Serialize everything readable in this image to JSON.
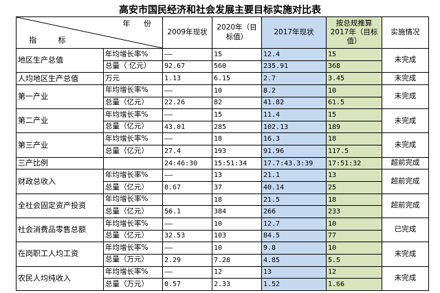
{
  "title": "高安市国民经济和社会发展主要目标实施对比表",
  "header": {
    "year_label": "年 份",
    "indicator_label": "指 标",
    "col_2009": "2009年现状",
    "col_2020": "2020年（目标值）",
    "col_2017_actual": "2017年现状",
    "col_2017_plan": "按总规推算2017年（目标值）",
    "col_status": "实施情况"
  },
  "rows": [
    {
      "indicator": "地区生产总值",
      "status": "未完成",
      "sub": [
        {
          "unit": "年均增长率%",
          "v2009": "——",
          "v2020": "15",
          "v2017": "12.4",
          "plan": "15"
        },
        {
          "unit": "总量（ 亿元）",
          "v2009": "92.67",
          "v2020": "560",
          "v2017": "235.91",
          "plan": "368"
        }
      ]
    },
    {
      "indicator": "人均地区生产总值",
      "status": "未完成",
      "sub": [
        {
          "unit": "万元",
          "v2009": "1.13",
          "v2020": "6.15",
          "v2017": "2.7",
          "plan": "3.45"
        }
      ]
    },
    {
      "indicator": "第一产业",
      "status": "未完成",
      "sub": [
        {
          "unit": "年均增长率%",
          "v2009": "——",
          "v2020": "10",
          "v2017": "8.2",
          "plan": "10"
        },
        {
          "unit": "总量（亿元）",
          "v2009": "22.26",
          "v2020": "82",
          "v2017": "41.82",
          "plan": "61.5"
        }
      ]
    },
    {
      "indicator": "第二产业",
      "status": "未完成",
      "sub": [
        {
          "unit": "年均增长率%",
          "v2009": "——",
          "v2020": "15",
          "v2017": "11.4",
          "plan": "15"
        },
        {
          "unit": "总量（亿元）",
          "v2009": "43.01",
          "v2020": "285",
          "v2017": "102.13",
          "plan": "189"
        }
      ]
    },
    {
      "indicator": "第三产业",
      "status": "未完成",
      "sub": [
        {
          "unit": "年均增长率%",
          "v2009": "——",
          "v2020": "18",
          "v2017": "16.3",
          "plan": "18"
        },
        {
          "unit": "总量（亿元）",
          "v2009": "27.4",
          "v2020": "193",
          "v2017": "91.96",
          "plan": "117.5"
        }
      ]
    },
    {
      "indicator": "三产比例",
      "status": "超前完成",
      "sub": [
        {
          "unit": "",
          "v2009": "24:46:30",
          "v2020": "15:51:34",
          "v2017": "17.7:43.3:39",
          "plan": "17:51:32"
        }
      ]
    },
    {
      "indicator": "财政总收入",
      "status": "超前完成",
      "sub": [
        {
          "unit": "年均增长率%",
          "v2009": "——",
          "v2020": "13",
          "v2017": "21.1",
          "plan": "13"
        },
        {
          "unit": "总量（亿元）",
          "v2009": "8.67",
          "v2020": "37",
          "v2017": "40.14",
          "plan": "25"
        }
      ]
    },
    {
      "indicator": "全社会固定资产投资",
      "status": "超前完成",
      "sub": [
        {
          "unit": "年均增长率%",
          "v2009": "",
          "v2020": "18",
          "v2017": "21.5",
          "plan": "18"
        },
        {
          "unit": "总量（亿元）",
          "v2009": "56.1",
          "v2020": "384",
          "v2017": "266",
          "plan": "233"
        }
      ]
    },
    {
      "indicator": "社会消费品零售总额",
      "status": "已完成",
      "sub": [
        {
          "unit": "年均增长率%",
          "v2009": "——",
          "v2020": "10",
          "v2017": "12.7",
          "plan": "10"
        },
        {
          "unit": "总量（亿元）",
          "v2009": "32.53",
          "v2020": "103",
          "v2017": "84.5",
          "plan": "77"
        }
      ]
    },
    {
      "indicator": "在岗职工人均工资",
      "status": "未完成",
      "sub": [
        {
          "unit": "年均增长率%",
          "v2009": "——",
          "v2020": "10",
          "v2017": "9.8",
          "plan": "10"
        },
        {
          "unit": "总量（万元）",
          "v2009": "2.29",
          "v2020": "7.28",
          "v2017": "4.85",
          "plan": "5.5"
        }
      ]
    },
    {
      "indicator": "农民人均纯收入",
      "status": "未完成",
      "sub": [
        {
          "unit": "年均增长率%",
          "v2009": "——",
          "v2020": "12",
          "v2017": "13",
          "plan": "12"
        },
        {
          "unit": "总量（万元）",
          "v2009": "0.57",
          "v2020": "2.33",
          "v2017": "1.52",
          "plan": "1.66"
        }
      ]
    }
  ]
}
